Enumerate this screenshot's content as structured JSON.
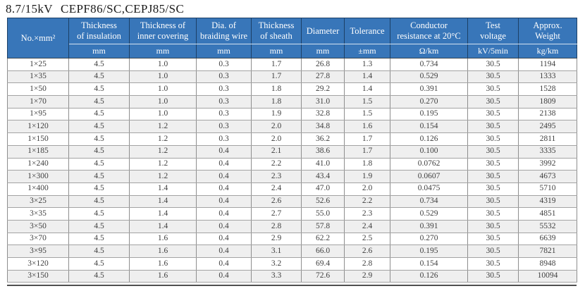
{
  "title": {
    "voltage": "8.7/15kV",
    "models": "CEPF86/SC,CEPJ85/SC"
  },
  "colors": {
    "header_bg": "#3876b9",
    "header_text": "#ffffff",
    "header_border_dark": "#1c4066",
    "header_divider_light": "#d4e2f0",
    "body_text": "#404040",
    "row_stripe": "#efefef",
    "bottom_rule": "#4f4f4f"
  },
  "table": {
    "columns": [
      {
        "line1": "No.×mm²",
        "line2": "",
        "unit": ""
      },
      {
        "line1": "Thickness",
        "line2": "of insulation",
        "unit": "mm"
      },
      {
        "line1": "Thickness of",
        "line2": "inner covering",
        "unit": "mm"
      },
      {
        "line1": "Dia. of",
        "line2": "braiding wire",
        "unit": "mm"
      },
      {
        "line1": "Thickness",
        "line2": "of sheath",
        "unit": "mm"
      },
      {
        "line1": "Diameter",
        "line2": "",
        "unit": "mm"
      },
      {
        "line1": "Tolerance",
        "line2": "",
        "unit": "±mm"
      },
      {
        "line1": "Conductor",
        "line2": "resistance at 20°C",
        "unit": "Ω/km"
      },
      {
        "line1": "Test",
        "line2": "voltage",
        "unit": "kV/5min"
      },
      {
        "line1": "Approx.",
        "line2": "Weight",
        "unit": "kg/km"
      }
    ],
    "rows": [
      [
        "1×25",
        "4.5",
        "1.0",
        "0.3",
        "1.7",
        "26.8",
        "1.3",
        "0.734",
        "30.5",
        "1194"
      ],
      [
        "1×35",
        "4.5",
        "1.0",
        "0.3",
        "1.7",
        "27.8",
        "1.4",
        "0.529",
        "30.5",
        "1333"
      ],
      [
        "1×50",
        "4.5",
        "1.0",
        "0.3",
        "1.8",
        "29.2",
        "1.4",
        "0.391",
        "30.5",
        "1528"
      ],
      [
        "1×70",
        "4.5",
        "1.0",
        "0.3",
        "1.8",
        "31.0",
        "1.5",
        "0.270",
        "30.5",
        "1809"
      ],
      [
        "1×95",
        "4.5",
        "1.0",
        "0.3",
        "1.9",
        "32.8",
        "1.5",
        "0.195",
        "30.5",
        "2138"
      ],
      [
        "1×120",
        "4.5",
        "1.2",
        "0.3",
        "2.0",
        "34.8",
        "1.6",
        "0.154",
        "30.5",
        "2495"
      ],
      [
        "1×150",
        "4.5",
        "1.2",
        "0.3",
        "2.0",
        "36.2",
        "1.7",
        "0.126",
        "30.5",
        "2811"
      ],
      [
        "1×185",
        "4.5",
        "1.2",
        "0.4",
        "2.1",
        "38.6",
        "1.7",
        "0.100",
        "30.5",
        "3335"
      ],
      [
        "1×240",
        "4.5",
        "1.2",
        "0.4",
        "2.2",
        "41.0",
        "1.8",
        "0.0762",
        "30.5",
        "3992"
      ],
      [
        "1×300",
        "4.5",
        "1.2",
        "0.4",
        "2.3",
        "43.4",
        "1.9",
        "0.0607",
        "30.5",
        "4673"
      ],
      [
        "1×400",
        "4.5",
        "1.4",
        "0.4",
        "2.4",
        "47.0",
        "2.0",
        "0.0475",
        "30.5",
        "5710"
      ],
      [
        "3×25",
        "4.5",
        "1.4",
        "0.4",
        "2.6",
        "52.6",
        "2.2",
        "0.734",
        "30.5",
        "4319"
      ],
      [
        "3×35",
        "4.5",
        "1.4",
        "0.4",
        "2.7",
        "55.0",
        "2.3",
        "0.529",
        "30.5",
        "4851"
      ],
      [
        "3×50",
        "4.5",
        "1.4",
        "0.4",
        "2.8",
        "57.8",
        "2.4",
        "0.391",
        "30.5",
        "5532"
      ],
      [
        "3×70",
        "4.5",
        "1.6",
        "0.4",
        "2.9",
        "62.2",
        "2.5",
        "0.270",
        "30.5",
        "6639"
      ],
      [
        "3×95",
        "4.5",
        "1.6",
        "0.4",
        "3.1",
        "66.0",
        "2.6",
        "0.195",
        "30.5",
        "7821"
      ],
      [
        "3×120",
        "4.5",
        "1.6",
        "0.4",
        "3.2",
        "69.4",
        "2.8",
        "0.154",
        "30.5",
        "8948"
      ],
      [
        "3×150",
        "4.5",
        "1.6",
        "0.4",
        "3.3",
        "72.6",
        "2.9",
        "0.126",
        "30.5",
        "10094"
      ]
    ]
  }
}
